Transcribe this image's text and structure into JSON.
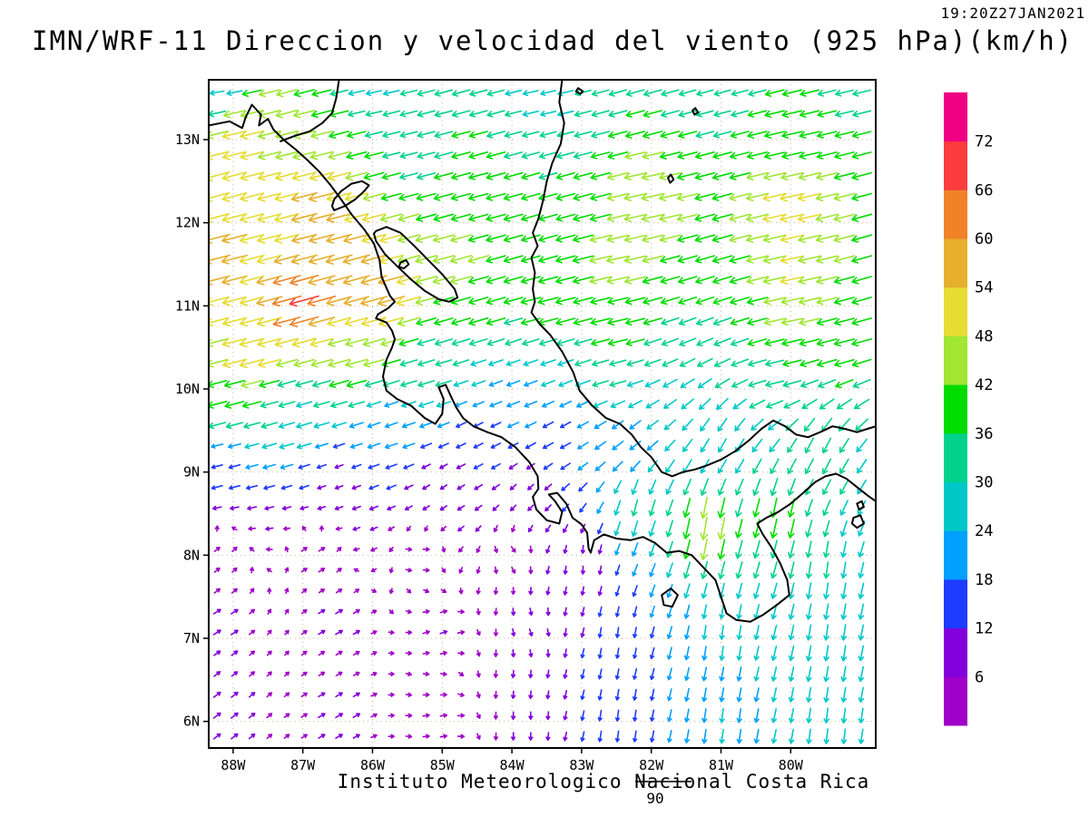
{
  "title": "IMN/WRF-11 Direccion y velocidad del viento (925 hPa)(km/h)",
  "timestamp": "19:20Z27JAN2021",
  "footer": {
    "institute": "Instituto Meteorologico Nacional Costa Rica",
    "frame_number": "90"
  },
  "chart_data": {
    "type": "vector-field-map",
    "model": "IMN/WRF-11",
    "variable": "Direccion y velocidad del viento",
    "level": "925 hPa",
    "units": "km/h",
    "valid_time": "19:20Z27JAN2021",
    "map_bounds": {
      "lon_min": -88.35,
      "lon_max": -78.78,
      "lat_min": 5.68,
      "lat_max": 13.72
    },
    "x_ticks": [
      {
        "lon": -88,
        "label": "88W"
      },
      {
        "lon": -87,
        "label": "87W"
      },
      {
        "lon": -86,
        "label": "86W"
      },
      {
        "lon": -85,
        "label": "85W"
      },
      {
        "lon": -84,
        "label": "84W"
      },
      {
        "lon": -83,
        "label": "83W"
      },
      {
        "lon": -82,
        "label": "82W"
      },
      {
        "lon": -81,
        "label": "81W"
      },
      {
        "lon": -80,
        "label": "80W"
      }
    ],
    "y_ticks": [
      {
        "lat": 13,
        "label": "13N"
      },
      {
        "lat": 12,
        "label": "12N"
      },
      {
        "lat": 11,
        "label": "11N"
      },
      {
        "lat": 10,
        "label": "10N"
      },
      {
        "lat": 9,
        "label": "9N"
      },
      {
        "lat": 8,
        "label": "8N"
      },
      {
        "lat": 7,
        "label": "7N"
      },
      {
        "lat": 6,
        "label": "6N"
      }
    ],
    "colorbar": {
      "tick_labels": [
        6,
        12,
        18,
        24,
        30,
        36,
        42,
        48,
        54,
        60,
        66,
        72
      ],
      "colors": [
        "#A000C8",
        "#8200DC",
        "#1E3CFF",
        "#00A0FF",
        "#00C8C8",
        "#00D28C",
        "#00DC00",
        "#A0E632",
        "#E6DC32",
        "#E6AF2D",
        "#F08228",
        "#FA3C3C",
        "#F00082"
      ]
    },
    "vector_grid_step_deg": 0.25,
    "wind_control_points_format": "[lat, lon, u_kmh_eastward, v_kmh_northward]",
    "wind_control_points_kmh": [
      [
        13.6,
        -88.2,
        -24,
        -4
      ],
      [
        13.6,
        -86.0,
        -28,
        -6
      ],
      [
        13.6,
        -83.5,
        -27,
        -6
      ],
      [
        13.6,
        -81.0,
        -30,
        -8
      ],
      [
        13.6,
        -79.2,
        -34,
        -8
      ],
      [
        13.1,
        -87.9,
        -50,
        -12
      ],
      [
        12.9,
        -85.5,
        -32,
        -8
      ],
      [
        13.0,
        -80.0,
        -40,
        -9
      ],
      [
        12.4,
        -88.2,
        -52,
        -14
      ],
      [
        12.2,
        -86.8,
        -55,
        -14
      ],
      [
        12.3,
        -84.5,
        -38,
        -10
      ],
      [
        12.3,
        -82.0,
        -46,
        -10
      ],
      [
        12.2,
        -80.0,
        -50,
        -11
      ],
      [
        12.8,
        -87.3,
        -46,
        -12
      ],
      [
        11.6,
        -88.2,
        -55,
        -14
      ],
      [
        11.5,
        -86.3,
        -57,
        -15
      ],
      [
        11.5,
        -84.8,
        -44,
        -12
      ],
      [
        11.5,
        -82.5,
        -46,
        -10
      ],
      [
        11.4,
        -80.0,
        -48,
        -10
      ],
      [
        11.05,
        -87.0,
        -66,
        -18
      ],
      [
        11.1,
        -85.8,
        -58,
        -16
      ],
      [
        11.0,
        -83.5,
        -40,
        -10
      ],
      [
        10.9,
        -84.5,
        -38,
        -11
      ],
      [
        10.8,
        -82.5,
        -40,
        -9
      ],
      [
        10.8,
        -80.0,
        -42,
        -9
      ],
      [
        10.45,
        -87.8,
        -52,
        -13
      ],
      [
        10.4,
        -86.3,
        -45,
        -12
      ],
      [
        10.2,
        -85.2,
        -30,
        -9
      ],
      [
        10.1,
        -84.0,
        -22,
        -8
      ],
      [
        10.2,
        -82.5,
        -30,
        -8
      ],
      [
        10.2,
        -80.2,
        -35,
        -8
      ],
      [
        10.6,
        -79.3,
        -40,
        -10
      ],
      [
        9.9,
        -88.2,
        -38,
        -10
      ],
      [
        9.7,
        -87.0,
        -28,
        -8
      ],
      [
        9.55,
        -85.8,
        -20,
        -7
      ],
      [
        9.5,
        -84.5,
        -12,
        -6
      ],
      [
        9.5,
        -83.3,
        -15,
        -8
      ],
      [
        9.4,
        -82.3,
        -18,
        -14
      ],
      [
        9.3,
        -81.0,
        -14,
        -24
      ],
      [
        9.2,
        -79.6,
        -14,
        -28
      ],
      [
        9.1,
        -88.2,
        -16,
        -4
      ],
      [
        8.9,
        -86.5,
        -8,
        -3
      ],
      [
        8.8,
        -85.0,
        -6,
        -4
      ],
      [
        8.7,
        -83.8,
        -5,
        -5
      ],
      [
        8.55,
        -82.2,
        -8,
        -30
      ],
      [
        8.35,
        -81.2,
        -8,
        -46
      ],
      [
        8.45,
        -80.2,
        -8,
        -38
      ],
      [
        8.0,
        -88.2,
        4,
        3
      ],
      [
        8.0,
        -86.8,
        5,
        3
      ],
      [
        8.0,
        -85.3,
        4,
        0
      ],
      [
        8.0,
        -84.0,
        3,
        -4
      ],
      [
        7.9,
        -83.0,
        0,
        -8
      ],
      [
        7.8,
        -79.5,
        -4,
        -30
      ],
      [
        7.2,
        -88.2,
        8,
        5
      ],
      [
        7.2,
        -86.5,
        7,
        4
      ],
      [
        7.1,
        -85.0,
        6,
        2
      ],
      [
        7.1,
        -83.7,
        2,
        -6
      ],
      [
        7.0,
        -82.5,
        -2,
        -14
      ],
      [
        7.0,
        -81.0,
        -3,
        -24
      ],
      [
        7.0,
        -79.4,
        -4,
        -28
      ],
      [
        6.1,
        -88.2,
        8,
        6
      ],
      [
        6.1,
        -86.5,
        7,
        4
      ],
      [
        6.0,
        -85.0,
        5,
        1
      ],
      [
        6.0,
        -83.8,
        0,
        -7
      ],
      [
        6.0,
        -82.4,
        -2,
        -16
      ],
      [
        5.9,
        -81.0,
        -3,
        -24
      ],
      [
        5.9,
        -79.4,
        -3,
        -26
      ]
    ],
    "coastline_segments": [
      [
        [
          -88.35,
          13.17
        ],
        [
          -88.05,
          13.22
        ],
        [
          -87.87,
          13.14
        ],
        [
          -87.82,
          13.27
        ],
        [
          -87.73,
          13.42
        ],
        [
          -87.6,
          13.3
        ],
        [
          -87.63,
          13.17
        ],
        [
          -87.5,
          13.25
        ],
        [
          -87.42,
          13.12
        ],
        [
          -87.25,
          12.98
        ],
        [
          -87.1,
          12.88
        ],
        [
          -86.93,
          12.75
        ],
        [
          -86.77,
          12.62
        ],
        [
          -86.6,
          12.45
        ],
        [
          -86.45,
          12.28
        ],
        [
          -86.3,
          12.1
        ],
        [
          -86.12,
          11.92
        ],
        [
          -85.98,
          11.75
        ],
        [
          -85.9,
          11.55
        ],
        [
          -85.87,
          11.35
        ],
        [
          -85.75,
          11.12
        ],
        [
          -85.68,
          11.05
        ],
        [
          -85.78,
          10.97
        ],
        [
          -85.92,
          10.9
        ],
        [
          -85.95,
          10.85
        ],
        [
          -85.8,
          10.8
        ],
        [
          -85.72,
          10.7
        ],
        [
          -85.68,
          10.6
        ],
        [
          -85.72,
          10.5
        ],
        [
          -85.8,
          10.35
        ],
        [
          -85.85,
          10.15
        ],
        [
          -85.8,
          9.98
        ],
        [
          -85.65,
          9.88
        ],
        [
          -85.45,
          9.8
        ],
        [
          -85.25,
          9.65
        ],
        [
          -85.1,
          9.58
        ],
        [
          -85.0,
          9.7
        ],
        [
          -84.98,
          9.88
        ],
        [
          -85.05,
          10.02
        ],
        [
          -84.95,
          10.05
        ],
        [
          -84.88,
          9.92
        ],
        [
          -84.8,
          9.78
        ],
        [
          -84.7,
          9.65
        ],
        [
          -84.55,
          9.55
        ],
        [
          -84.35,
          9.48
        ],
        [
          -84.15,
          9.42
        ],
        [
          -83.95,
          9.3
        ],
        [
          -83.75,
          9.12
        ],
        [
          -83.63,
          8.95
        ],
        [
          -83.62,
          8.8
        ],
        [
          -83.7,
          8.7
        ],
        [
          -83.65,
          8.55
        ],
        [
          -83.5,
          8.42
        ],
        [
          -83.32,
          8.38
        ],
        [
          -83.28,
          8.52
        ],
        [
          -83.38,
          8.65
        ],
        [
          -83.47,
          8.73
        ],
        [
          -83.35,
          8.75
        ],
        [
          -83.22,
          8.62
        ],
        [
          -83.13,
          8.45
        ],
        [
          -83.0,
          8.37
        ],
        [
          -82.92,
          8.27
        ],
        [
          -82.9,
          8.08
        ],
        [
          -82.87,
          8.03
        ],
        [
          -82.82,
          8.18
        ],
        [
          -82.68,
          8.25
        ],
        [
          -82.5,
          8.2
        ],
        [
          -82.3,
          8.18
        ],
        [
          -82.12,
          8.22
        ],
        [
          -81.95,
          8.15
        ],
        [
          -81.78,
          8.03
        ],
        [
          -81.6,
          8.05
        ],
        [
          -81.42,
          8.0
        ],
        [
          -81.25,
          7.85
        ],
        [
          -81.08,
          7.7
        ],
        [
          -81.0,
          7.5
        ],
        [
          -80.92,
          7.3
        ],
        [
          -80.78,
          7.22
        ],
        [
          -80.58,
          7.2
        ],
        [
          -80.4,
          7.28
        ],
        [
          -80.2,
          7.4
        ],
        [
          -80.02,
          7.52
        ],
        [
          -80.05,
          7.7
        ],
        [
          -80.15,
          7.9
        ],
        [
          -80.28,
          8.1
        ],
        [
          -80.4,
          8.25
        ],
        [
          -80.48,
          8.38
        ],
        [
          -80.35,
          8.45
        ],
        [
          -80.18,
          8.52
        ],
        [
          -80.0,
          8.62
        ],
        [
          -79.82,
          8.75
        ],
        [
          -79.65,
          8.88
        ],
        [
          -79.5,
          8.95
        ],
        [
          -79.35,
          8.98
        ],
        [
          -79.2,
          8.92
        ],
        [
          -79.05,
          8.82
        ],
        [
          -78.9,
          8.72
        ],
        [
          -78.78,
          8.65
        ]
      ],
      [
        [
          -83.28,
          13.72
        ],
        [
          -83.32,
          13.45
        ],
        [
          -83.25,
          13.2
        ],
        [
          -83.3,
          12.95
        ],
        [
          -83.42,
          12.72
        ],
        [
          -83.5,
          12.5
        ],
        [
          -83.55,
          12.28
        ],
        [
          -83.62,
          12.05
        ],
        [
          -83.7,
          11.88
        ],
        [
          -83.63,
          11.72
        ],
        [
          -83.72,
          11.58
        ],
        [
          -83.67,
          11.4
        ],
        [
          -83.7,
          11.2
        ],
        [
          -83.67,
          11.05
        ],
        [
          -83.72,
          10.92
        ],
        [
          -83.6,
          10.78
        ],
        [
          -83.45,
          10.65
        ],
        [
          -83.28,
          10.45
        ],
        [
          -83.12,
          10.2
        ],
        [
          -83.03,
          9.98
        ],
        [
          -82.85,
          9.8
        ],
        [
          -82.65,
          9.65
        ],
        [
          -82.45,
          9.58
        ],
        [
          -82.28,
          9.45
        ],
        [
          -82.15,
          9.3
        ],
        [
          -82.0,
          9.18
        ],
        [
          -81.85,
          9.0
        ],
        [
          -81.7,
          8.95
        ],
        [
          -81.55,
          9.0
        ],
        [
          -81.38,
          9.03
        ],
        [
          -81.2,
          9.08
        ],
        [
          -81.0,
          9.15
        ],
        [
          -80.8,
          9.25
        ],
        [
          -80.6,
          9.38
        ],
        [
          -80.42,
          9.52
        ],
        [
          -80.25,
          9.62
        ],
        [
          -80.08,
          9.55
        ],
        [
          -79.92,
          9.45
        ],
        [
          -79.75,
          9.42
        ],
        [
          -79.58,
          9.48
        ],
        [
          -79.4,
          9.55
        ],
        [
          -79.22,
          9.52
        ],
        [
          -79.05,
          9.48
        ],
        [
          -78.9,
          9.52
        ],
        [
          -78.78,
          9.55
        ]
      ],
      [
        [
          -87.32,
          12.98
        ],
        [
          -87.1,
          13.05
        ],
        [
          -86.9,
          13.1
        ],
        [
          -86.72,
          13.2
        ],
        [
          -86.58,
          13.32
        ],
        [
          -86.52,
          13.5
        ],
        [
          -86.48,
          13.72
        ]
      ],
      [
        [
          -86.55,
          12.15
        ],
        [
          -86.4,
          12.2
        ],
        [
          -86.25,
          12.28
        ],
        [
          -86.12,
          12.38
        ],
        [
          -86.05,
          12.45
        ],
        [
          -86.15,
          12.5
        ],
        [
          -86.3,
          12.47
        ],
        [
          -86.45,
          12.38
        ],
        [
          -86.55,
          12.28
        ],
        [
          -86.58,
          12.2
        ],
        [
          -86.55,
          12.15
        ]
      ],
      [
        [
          -85.95,
          11.9
        ],
        [
          -85.8,
          11.95
        ],
        [
          -85.6,
          11.88
        ],
        [
          -85.4,
          11.72
        ],
        [
          -85.2,
          11.55
        ],
        [
          -85.0,
          11.38
        ],
        [
          -84.82,
          11.2
        ],
        [
          -84.78,
          11.1
        ],
        [
          -84.9,
          11.05
        ],
        [
          -85.05,
          11.08
        ],
        [
          -85.25,
          11.18
        ],
        [
          -85.45,
          11.32
        ],
        [
          -85.65,
          11.48
        ],
        [
          -85.82,
          11.62
        ],
        [
          -85.95,
          11.78
        ],
        [
          -85.98,
          11.87
        ],
        [
          -85.95,
          11.9
        ]
      ],
      [
        [
          -85.6,
          11.52
        ],
        [
          -85.52,
          11.55
        ],
        [
          -85.48,
          11.5
        ],
        [
          -85.55,
          11.45
        ],
        [
          -85.62,
          11.47
        ],
        [
          -85.6,
          11.52
        ]
      ],
      [
        [
          -81.85,
          7.52
        ],
        [
          -81.72,
          7.6
        ],
        [
          -81.62,
          7.52
        ],
        [
          -81.7,
          7.38
        ],
        [
          -81.82,
          7.4
        ],
        [
          -81.85,
          7.52
        ]
      ],
      [
        [
          -79.1,
          8.45
        ],
        [
          -79.0,
          8.48
        ],
        [
          -78.95,
          8.38
        ],
        [
          -79.05,
          8.33
        ],
        [
          -79.12,
          8.38
        ],
        [
          -79.1,
          8.45
        ]
      ],
      [
        [
          -79.05,
          8.62
        ],
        [
          -78.98,
          8.65
        ],
        [
          -78.95,
          8.58
        ],
        [
          -79.02,
          8.55
        ],
        [
          -79.05,
          8.62
        ]
      ],
      [
        [
          -81.72,
          12.58
        ],
        [
          -81.68,
          12.52
        ],
        [
          -81.73,
          12.48
        ],
        [
          -81.76,
          12.54
        ],
        [
          -81.72,
          12.58
        ]
      ],
      [
        [
          -81.37,
          13.38
        ],
        [
          -81.33,
          13.33
        ],
        [
          -81.38,
          13.3
        ],
        [
          -81.41,
          13.35
        ],
        [
          -81.37,
          13.38
        ]
      ],
      [
        [
          -83.05,
          13.62
        ],
        [
          -82.98,
          13.58
        ],
        [
          -83.02,
          13.55
        ],
        [
          -83.08,
          13.58
        ],
        [
          -83.05,
          13.62
        ]
      ]
    ]
  }
}
